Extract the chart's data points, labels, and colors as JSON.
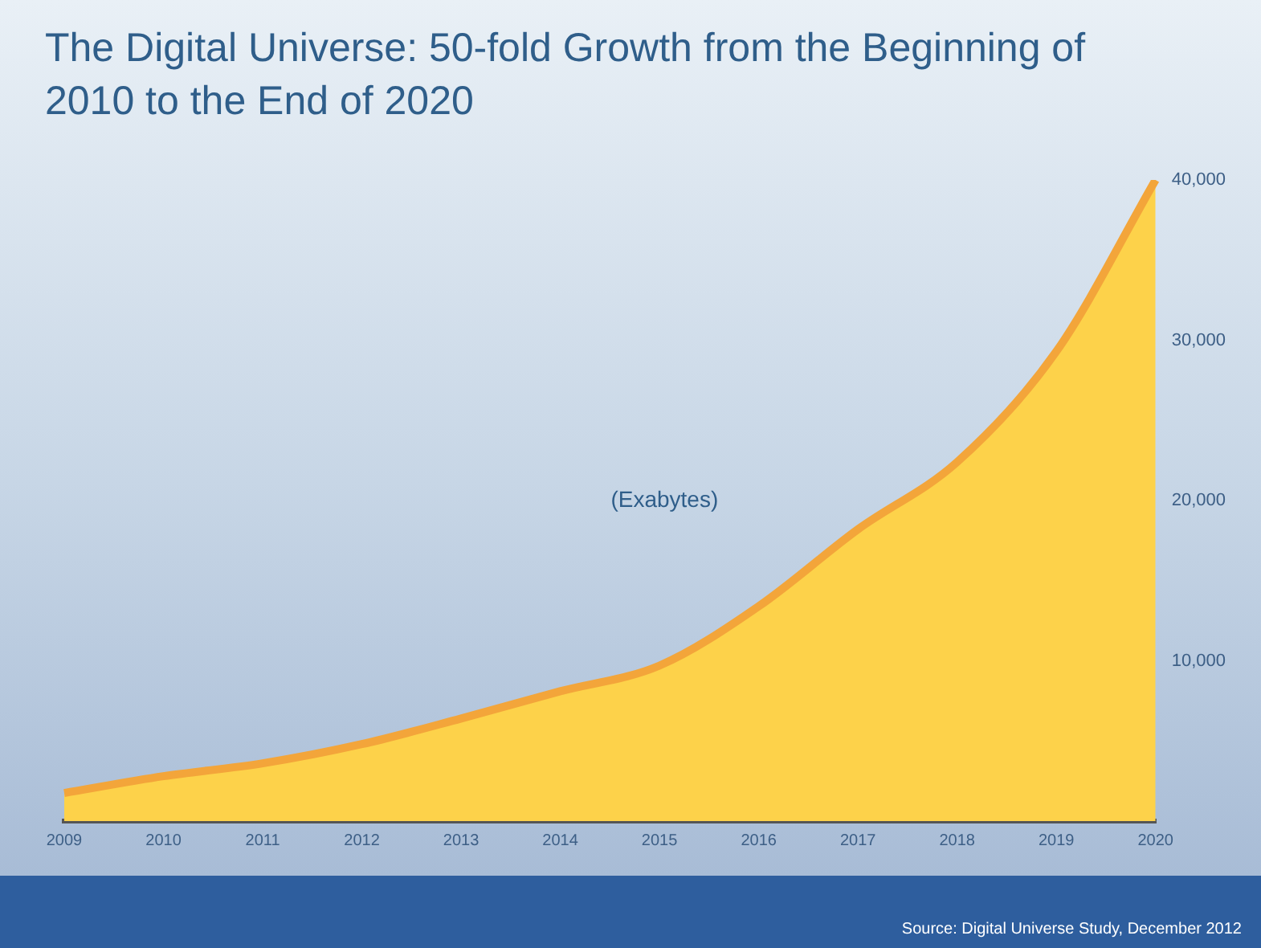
{
  "chart_data": {
    "type": "area",
    "title": "The Digital Universe: 50-fold Growth from the Beginning of 2010 to the End of 2020",
    "ylabel": "(Exabytes)",
    "categories": [
      "2009",
      "2010",
      "2011",
      "2012",
      "2013",
      "2014",
      "2015",
      "2016",
      "2017",
      "2018",
      "2019",
      "2020"
    ],
    "series": [
      {
        "color": "#fdd24a",
        "values": [
          1750,
          2800,
          3600,
          4800,
          6400,
          8100,
          9700,
          13400,
          18200,
          22400,
          29300,
          40000
        ]
      }
    ],
    "ylim": [
      0,
      40000
    ],
    "yticks": [
      {
        "value": 0,
        "label": null
      },
      {
        "value": 10000,
        "label": "10,000"
      },
      {
        "value": 20000,
        "label": "20,000"
      },
      {
        "value": 30000,
        "label": "30,000"
      },
      {
        "value": 40000,
        "label": "40,000"
      }
    ],
    "grid": false,
    "legend": false,
    "annotations": [
      "Source: Digital Universe Study, December 2012"
    ]
  }
}
